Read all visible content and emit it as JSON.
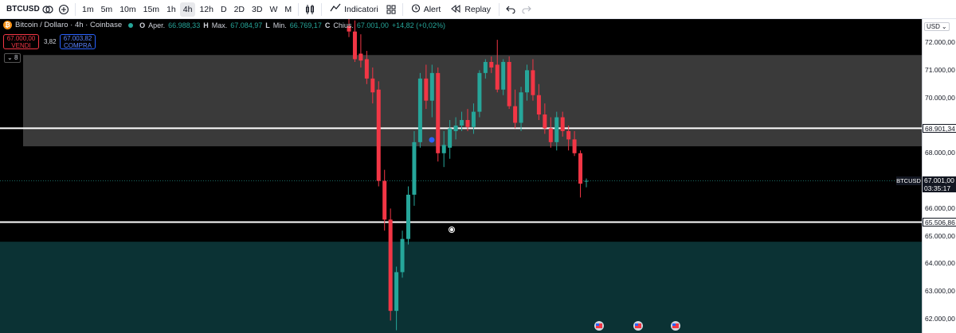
{
  "toolbar": {
    "symbol": "BTCUSD",
    "timeframes": [
      "1m",
      "5m",
      "10m",
      "15m",
      "1h",
      "4h",
      "12h",
      "D",
      "2D",
      "3D",
      "W",
      "M"
    ],
    "active_timeframe": "4h",
    "indicators_label": "Indicatori",
    "alert_label": "Alert",
    "replay_label": "Replay"
  },
  "legend": {
    "logo_glyph": "₿",
    "title": "Bitcoin / Dollaro · 4h · Coinbase",
    "open_key": "O",
    "open_label": "Aper.",
    "open_value": "66.988,33",
    "high_key": "H",
    "high_label": "Max.",
    "high_value": "67.084,97",
    "low_key": "L",
    "low_label": "Min.",
    "low_value": "66.769,17",
    "close_key": "C",
    "close_label": "Chius.",
    "close_value": "67.001,00",
    "change": "+14,82 (+0,02%)"
  },
  "trade": {
    "sell_price": "67.000,00",
    "sell_label": "VENDI",
    "spread": "3,82",
    "buy_price": "67.003,82",
    "buy_label": "COMPRA",
    "indicator_count": "8"
  },
  "scale": {
    "currency": "USD",
    "ticks": [
      "72.000,00",
      "71.000,00",
      "70.000,00",
      "68.000,00",
      "67.000,00",
      "66.000,00",
      "65.000,00",
      "64.000,00",
      "63.000,00",
      "62.000,00"
    ],
    "level_upper": "68.901,34",
    "level_lower": "65.506,86",
    "current_price": "67.001,00",
    "countdown": "03:35:17",
    "symbol_tag": "BTCUSD"
  },
  "colors": {
    "up": "#26a69a",
    "down": "#f23645",
    "zone_gray": "#3a3a3a",
    "zone_teal": "#0b3234",
    "background": "#000000"
  },
  "chart_data": {
    "type": "candlestick",
    "symbol": "BTCUSD",
    "interval": "4h",
    "ylim": [
      61500,
      72850
    ],
    "levels": [
      68901.34,
      65506.86
    ],
    "zones": [
      {
        "from": 68250,
        "to": 71550
      },
      {
        "from": 61500,
        "to": 64800
      }
    ],
    "current_price": 67001.0,
    "candles": [
      {
        "o": 72600,
        "h": 72850,
        "l": 72200,
        "c": 72400
      },
      {
        "o": 72400,
        "h": 72800,
        "l": 71300,
        "c": 71400
      },
      {
        "o": 71600,
        "h": 72300,
        "l": 71100,
        "c": 71350
      },
      {
        "o": 71400,
        "h": 71700,
        "l": 70500,
        "c": 70700
      },
      {
        "o": 70700,
        "h": 71100,
        "l": 69800,
        "c": 70200
      },
      {
        "o": 70300,
        "h": 70600,
        "l": 66800,
        "c": 67000
      },
      {
        "o": 67000,
        "h": 67400,
        "l": 65200,
        "c": 65600
      },
      {
        "o": 65600,
        "h": 66000,
        "l": 61950,
        "c": 62300
      },
      {
        "o": 62300,
        "h": 63900,
        "l": 61600,
        "c": 63700
      },
      {
        "o": 63700,
        "h": 65200,
        "l": 63500,
        "c": 64900
      },
      {
        "o": 64900,
        "h": 66800,
        "l": 64700,
        "c": 66500
      },
      {
        "o": 66500,
        "h": 68800,
        "l": 66100,
        "c": 68400
      },
      {
        "o": 68400,
        "h": 70900,
        "l": 68200,
        "c": 70700
      },
      {
        "o": 70700,
        "h": 71200,
        "l": 69600,
        "c": 69900
      },
      {
        "o": 69900,
        "h": 71200,
        "l": 69300,
        "c": 70900
      },
      {
        "o": 70900,
        "h": 71100,
        "l": 67700,
        "c": 68000
      },
      {
        "o": 68000,
        "h": 68800,
        "l": 67500,
        "c": 68300
      },
      {
        "o": 68200,
        "h": 69200,
        "l": 67800,
        "c": 68900
      },
      {
        "o": 68800,
        "h": 69300,
        "l": 68500,
        "c": 69000
      },
      {
        "o": 69000,
        "h": 69500,
        "l": 68800,
        "c": 69200
      },
      {
        "o": 69200,
        "h": 69600,
        "l": 68800,
        "c": 68950
      },
      {
        "o": 68950,
        "h": 69800,
        "l": 68700,
        "c": 69500
      },
      {
        "o": 69500,
        "h": 71000,
        "l": 69300,
        "c": 70900
      },
      {
        "o": 70900,
        "h": 71400,
        "l": 70700,
        "c": 71300
      },
      {
        "o": 71300,
        "h": 71500,
        "l": 70900,
        "c": 71100
      },
      {
        "o": 71200,
        "h": 72100,
        "l": 70200,
        "c": 70300
      },
      {
        "o": 70300,
        "h": 71400,
        "l": 70100,
        "c": 71300
      },
      {
        "o": 71300,
        "h": 71500,
        "l": 69600,
        "c": 69700
      },
      {
        "o": 69700,
        "h": 70300,
        "l": 68900,
        "c": 69100
      },
      {
        "o": 69100,
        "h": 70400,
        "l": 68800,
        "c": 70200
      },
      {
        "o": 70200,
        "h": 71200,
        "l": 69900,
        "c": 71000
      },
      {
        "o": 71000,
        "h": 71400,
        "l": 69900,
        "c": 70100
      },
      {
        "o": 70100,
        "h": 70500,
        "l": 69200,
        "c": 69400
      },
      {
        "o": 69400,
        "h": 69800,
        "l": 68700,
        "c": 68900
      },
      {
        "o": 68900,
        "h": 69300,
        "l": 68200,
        "c": 68400
      },
      {
        "o": 68400,
        "h": 69500,
        "l": 68100,
        "c": 69300
      },
      {
        "o": 69300,
        "h": 69500,
        "l": 68600,
        "c": 68800
      },
      {
        "o": 68800,
        "h": 69000,
        "l": 68100,
        "c": 68500
      },
      {
        "o": 68500,
        "h": 68800,
        "l": 67900,
        "c": 68000
      },
      {
        "o": 68000,
        "h": 68100,
        "l": 66400,
        "c": 66900
      },
      {
        "o": 66988,
        "h": 67085,
        "l": 66769,
        "c": 67001
      }
    ]
  }
}
